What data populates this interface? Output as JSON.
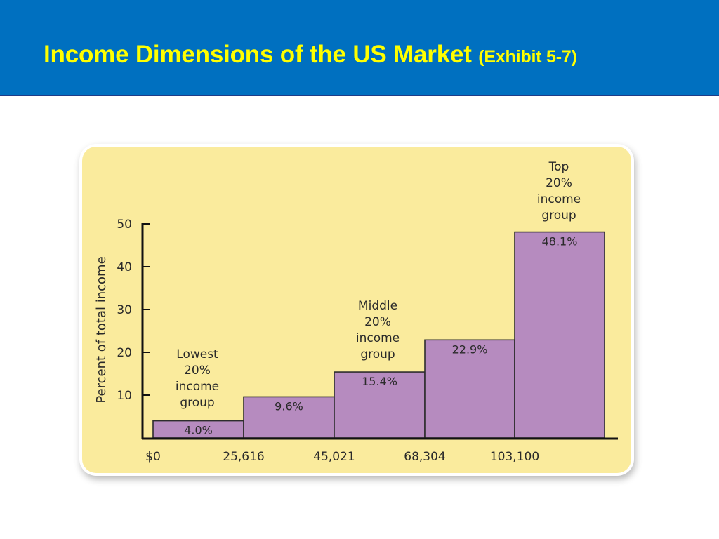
{
  "header": {
    "title": "Income Dimensions of the US Market",
    "subtitle": "(Exhibit 5-7)"
  },
  "colors": {
    "header_bg": "#0070c0",
    "title": "#ffff00",
    "card_bg": "#faeb9d",
    "bar_fill": "#b68bbf",
    "axis": "#111111"
  },
  "chart_data": {
    "type": "bar",
    "ylabel": "Percent of total income",
    "xlabel": "",
    "ylim": [
      0,
      50
    ],
    "yticks": [
      10,
      20,
      30,
      40,
      50
    ],
    "x_edge_labels": [
      "$0",
      "25,616",
      "45,021",
      "68,304",
      "103,100"
    ],
    "values": [
      4.0,
      9.6,
      15.4,
      22.9,
      48.1
    ],
    "data_labels": [
      "4.0%",
      "9.6%",
      "15.4%",
      "22.9%",
      "48.1%"
    ],
    "group_annotations": [
      {
        "bar": 0,
        "lines": [
          "Lowest",
          "20%",
          "income",
          "group"
        ]
      },
      {
        "bar": 2,
        "lines": [
          "Middle",
          "20%",
          "income",
          "group"
        ]
      },
      {
        "bar": 4,
        "lines": [
          "Top",
          "20%",
          "income",
          "group"
        ]
      }
    ],
    "grid": false
  }
}
